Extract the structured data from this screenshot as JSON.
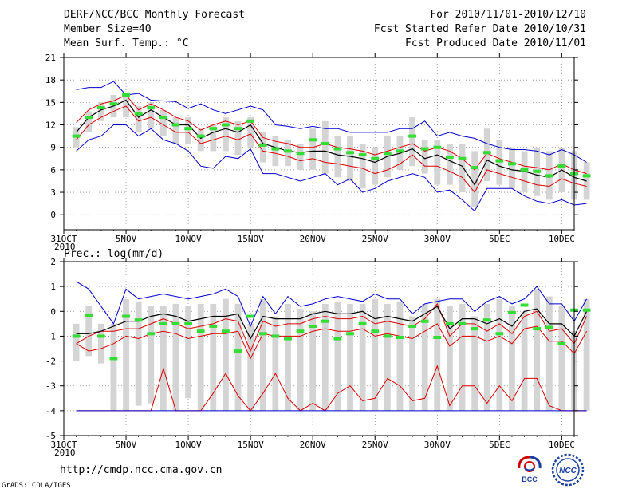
{
  "header": {
    "title": "DERF/NCC/BCC Monthly Forecast",
    "member_size": "Member Size=40",
    "variable": "Mean Surf. Temp.: °C",
    "period": "For 2010/11/01-2010/12/10",
    "started": "Fcst Started Refer Date 2010/10/31",
    "produced": "Fcst Produced Date 2010/11/01"
  },
  "footer": {
    "url": "http://cmdp.ncc.cma.gov.cn",
    "credit": "GrADS: COLA/IGES",
    "logo_bcc": "BCC",
    "logo_ncc": "NCC"
  },
  "colors": {
    "max": "#0000cc",
    "min": "#0000cc",
    "band": "#dd0000",
    "mean": "#000000",
    "box": "#d4d4d4",
    "median": "#33dd33"
  },
  "chart_data": [
    {
      "type": "box-line",
      "title": "Mean Surf. Temp.: °C",
      "xlabel": "",
      "ylabel": "",
      "ylim": [
        -2,
        21
      ],
      "yticks": [
        0,
        3,
        6,
        9,
        12,
        15,
        18,
        21
      ],
      "xlim": [
        0,
        41
      ],
      "xticks": [
        {
          "x": 0,
          "label": "31OCT",
          "sub": "2010"
        },
        {
          "x": 5,
          "label": "5NOV"
        },
        {
          "x": 10,
          "label": "10NOV"
        },
        {
          "x": 15,
          "label": "15NOV"
        },
        {
          "x": 20,
          "label": "20NOV"
        },
        {
          "x": 25,
          "label": "25NOV"
        },
        {
          "x": 30,
          "label": "30NOV"
        },
        {
          "x": 35,
          "label": "5DEC"
        },
        {
          "x": 40,
          "label": "10DEC"
        }
      ],
      "grid": true,
      "x_start": 1,
      "series": [
        {
          "name": "max",
          "values": [
            16.7,
            17.0,
            17.0,
            17.8,
            16.0,
            16.2,
            15.3,
            15.2,
            15.1,
            14.2,
            14.8,
            14.0,
            13.5,
            14.0,
            14.5,
            14.0,
            12.0,
            11.8,
            11.5,
            11.8,
            11.5,
            11.5,
            11.0,
            11.0,
            11.0,
            11.0,
            11.5,
            11.5,
            12.5,
            10.5,
            11.0,
            10.5,
            10.2,
            9.5,
            9.0,
            8.7,
            8.7,
            8.5,
            8.0,
            8.7,
            8.0,
            7.0
          ]
        },
        {
          "name": "band_high",
          "values": [
            12.3,
            14.0,
            14.8,
            15.2,
            16.0,
            14.0,
            14.8,
            14.0,
            13.0,
            12.5,
            11.3,
            12.0,
            12.5,
            12.0,
            12.5,
            10.3,
            9.8,
            9.5,
            9.0,
            9.0,
            9.5,
            9.0,
            8.8,
            8.5,
            8.0,
            8.5,
            9.0,
            9.5,
            8.5,
            9.0,
            8.5,
            7.5,
            6.0,
            8.2,
            7.5,
            7.0,
            6.5,
            6.3,
            6.0,
            6.8,
            6.0,
            5.5
          ]
        },
        {
          "name": "mean",
          "values": [
            11.0,
            13.0,
            14.0,
            14.5,
            15.3,
            13.0,
            14.0,
            13.0,
            12.0,
            12.0,
            10.2,
            11.0,
            11.5,
            11.0,
            12.0,
            9.5,
            9.0,
            8.5,
            8.3,
            8.5,
            8.5,
            8.0,
            7.8,
            7.5,
            7.0,
            7.8,
            8.2,
            8.8,
            7.5,
            8.0,
            7.2,
            6.5,
            4.0,
            7.3,
            6.5,
            6.0,
            5.8,
            5.3,
            5.0,
            6.0,
            5.0,
            4.5
          ]
        },
        {
          "name": "band_low",
          "values": [
            10.0,
            12.0,
            13.0,
            13.8,
            14.5,
            12.5,
            13.0,
            12.0,
            11.0,
            11.0,
            9.5,
            10.0,
            10.5,
            10.0,
            10.8,
            8.5,
            8.2,
            7.8,
            7.2,
            7.5,
            7.0,
            6.8,
            6.5,
            6.2,
            5.5,
            6.0,
            6.8,
            8.0,
            6.5,
            6.5,
            5.8,
            5.0,
            3.0,
            6.0,
            5.5,
            5.0,
            4.5,
            4.0,
            3.8,
            4.8,
            4.2,
            3.8
          ]
        },
        {
          "name": "min",
          "values": [
            8.5,
            10.0,
            10.5,
            12.0,
            12.0,
            10.5,
            11.5,
            10.0,
            9.5,
            8.5,
            6.5,
            6.2,
            7.8,
            7.5,
            8.8,
            5.5,
            5.5,
            5.0,
            4.5,
            5.0,
            5.5,
            4.0,
            4.8,
            3.0,
            3.5,
            4.5,
            5.0,
            5.5,
            5.0,
            3.0,
            3.3,
            2.0,
            0.5,
            3.5,
            3.5,
            3.5,
            2.5,
            1.8,
            1.5,
            2.0,
            1.3,
            1.5
          ]
        },
        {
          "name": "box_high",
          "values": [
            11.7,
            13.8,
            15.0,
            16.0,
            16.2,
            14.5,
            15.0,
            14.0,
            13.0,
            13.0,
            11.5,
            12.0,
            13.0,
            12.5,
            13.0,
            11.0,
            10.5,
            10.0,
            9.5,
            11.5,
            12.5,
            10.5,
            10.5,
            9.5,
            9.0,
            10.5,
            10.5,
            13.0,
            10.0,
            10.0,
            9.5,
            9.5,
            8.5,
            11.5,
            10.0,
            9.0,
            8.5,
            9.0,
            8.5,
            9.0,
            8.5,
            7.0
          ]
        },
        {
          "name": "box_low",
          "values": [
            9.0,
            11.0,
            12.5,
            13.0,
            13.0,
            11.0,
            11.5,
            10.5,
            9.5,
            9.5,
            8.5,
            8.5,
            8.5,
            8.0,
            9.0,
            7.0,
            6.5,
            6.5,
            6.0,
            6.0,
            5.5,
            5.0,
            4.5,
            3.5,
            4.0,
            5.0,
            6.0,
            6.5,
            5.5,
            4.0,
            4.0,
            3.0,
            1.0,
            4.5,
            4.0,
            3.5,
            3.0,
            2.5,
            2.0,
            3.0,
            2.0,
            2.0
          ]
        },
        {
          "name": "median",
          "values": [
            10.5,
            13.0,
            14.3,
            14.8,
            16.0,
            13.5,
            14.3,
            13.0,
            12.0,
            11.5,
            10.5,
            11.5,
            12.0,
            11.5,
            12.5,
            9.3,
            8.8,
            8.5,
            8.2,
            10.0,
            9.5,
            8.8,
            8.3,
            8.0,
            7.5,
            8.2,
            8.5,
            10.5,
            8.8,
            9.0,
            7.7,
            7.5,
            6.3,
            8.3,
            7.2,
            6.8,
            6.0,
            5.8,
            5.2,
            6.5,
            5.5,
            5.2
          ]
        }
      ]
    },
    {
      "type": "box-line",
      "title": "Prec.: log(mm/d)",
      "xlabel": "",
      "ylabel": "",
      "ylim": [
        -5,
        2
      ],
      "yticks": [
        -5,
        -4,
        -3,
        -2,
        -1,
        0,
        1,
        2
      ],
      "xlim": [
        0,
        41
      ],
      "xticks": [
        {
          "x": 0,
          "label": "31OCT",
          "sub": "2010"
        },
        {
          "x": 5,
          "label": "5NOV"
        },
        {
          "x": 10,
          "label": "10NOV"
        },
        {
          "x": 15,
          "label": "15NOV"
        },
        {
          "x": 20,
          "label": "20NOV"
        },
        {
          "x": 25,
          "label": "25NOV"
        },
        {
          "x": 30,
          "label": "30NOV"
        },
        {
          "x": 35,
          "label": "5DEC"
        },
        {
          "x": 40,
          "label": "10DEC"
        }
      ],
      "grid": true,
      "x_start": 1,
      "series": [
        {
          "name": "max",
          "values": [
            1.2,
            0.9,
            0.2,
            -0.5,
            0.9,
            0.5,
            0.6,
            0.7,
            0.6,
            0.5,
            0.6,
            0.7,
            0.9,
            0.6,
            -0.6,
            0.6,
            -0.1,
            0.6,
            0.2,
            0.3,
            0.5,
            0.6,
            0.5,
            0.4,
            0.7,
            0.5,
            0.5,
            -0.1,
            0.3,
            0.4,
            0.5,
            0.5,
            0.0,
            0.4,
            0.6,
            0.3,
            0.5,
            1.0,
            0.3,
            0.3,
            -0.4,
            0.5
          ]
        },
        {
          "name": "band_high",
          "values": [
            -1.3,
            -1.0,
            -0.8,
            -0.8,
            -0.7,
            -0.7,
            -0.5,
            -0.3,
            -0.5,
            -0.7,
            -0.6,
            -0.5,
            -0.3,
            -0.4,
            -1.6,
            -0.4,
            -0.6,
            -0.5,
            -0.5,
            -0.3,
            -0.2,
            -0.3,
            -0.3,
            -0.2,
            -0.5,
            -0.4,
            -0.5,
            -0.6,
            -0.3,
            0.3,
            -1.0,
            -0.5,
            -0.5,
            -0.8,
            -0.5,
            -0.9,
            -0.2,
            0.0,
            -0.8,
            -0.7,
            -1.3,
            -0.2
          ]
        },
        {
          "name": "mean",
          "values": [
            -0.9,
            -0.9,
            -0.8,
            -0.6,
            -0.4,
            -0.4,
            -0.2,
            -0.1,
            -0.2,
            -0.4,
            -0.3,
            -0.2,
            -0.2,
            -0.1,
            -1.1,
            -0.2,
            -0.3,
            -0.3,
            -0.3,
            -0.1,
            0.0,
            -0.1,
            -0.1,
            0.0,
            -0.3,
            -0.2,
            -0.3,
            -0.4,
            -0.1,
            0.2,
            -0.7,
            -0.3,
            -0.3,
            -0.5,
            -0.3,
            -0.6,
            0.0,
            0.1,
            -0.5,
            -0.5,
            -1.0,
            0.0
          ]
        },
        {
          "name": "band_low",
          "values": [
            -1.3,
            -1.6,
            -1.5,
            -1.3,
            -1.0,
            -1.1,
            -0.9,
            -0.8,
            -0.9,
            -1.1,
            -1.0,
            -0.9,
            -0.9,
            -0.8,
            -1.9,
            -0.9,
            -1.0,
            -1.0,
            -1.0,
            -0.8,
            -0.7,
            -0.8,
            -0.8,
            -0.7,
            -1.0,
            -0.9,
            -1.0,
            -1.1,
            -0.8,
            -0.5,
            -1.4,
            -1.0,
            -1.0,
            -1.2,
            -1.0,
            -1.3,
            -0.7,
            -0.6,
            -1.2,
            -1.2,
            -1.7,
            -0.8
          ]
        },
        {
          "name": "min",
          "values": [
            -4.0,
            -4.0,
            -4.0,
            -4.0,
            -4.0,
            -4.0,
            -4.0,
            -4.0,
            -4.0,
            -4.0,
            -4.0,
            -4.0,
            -4.0,
            -4.0,
            -4.0,
            -4.0,
            -4.0,
            -4.0,
            -4.0,
            -4.0,
            -4.0,
            -4.0,
            -4.0,
            -4.0,
            -4.0,
            -4.0,
            -4.0,
            -4.0,
            -4.0,
            -4.0,
            -4.0,
            -4.0,
            -4.0,
            -4.0,
            -4.0,
            -4.0,
            -4.0,
            -4.0,
            -4.0,
            -4.0,
            -4.0,
            -4.0
          ]
        },
        {
          "name": "aux",
          "values": [
            -4.0,
            -4.0,
            -4.0,
            -4.0,
            -4.0,
            -4.0,
            -4.0,
            -2.3,
            -4.0,
            -4.0,
            -4.0,
            -3.3,
            -2.5,
            -3.4,
            -4.0,
            -3.3,
            -2.5,
            -3.5,
            -4.0,
            -3.7,
            -4.0,
            -3.3,
            -3.0,
            -3.6,
            -3.5,
            -2.7,
            -3.0,
            -3.6,
            -3.5,
            -2.2,
            -3.8,
            -3.0,
            -3.0,
            -3.7,
            -3.0,
            -3.6,
            -2.7,
            -2.7,
            -3.8,
            -4.0,
            -4.0,
            -4.0
          ]
        },
        {
          "name": "box_high",
          "values": [
            -0.5,
            0.2,
            -0.5,
            -0.5,
            0.5,
            0.4,
            0.2,
            0.2,
            0.3,
            0.2,
            0.3,
            0.3,
            0.5,
            0.3,
            -0.5,
            0.5,
            -0.2,
            0.3,
            0.1,
            0.0,
            0.3,
            0.4,
            0.3,
            0.3,
            0.5,
            0.3,
            0.4,
            -0.2,
            0.3,
            0.5,
            0.2,
            0.3,
            -0.2,
            0.3,
            0.5,
            0.2,
            0.0,
            0.9,
            0.6,
            0.2,
            -0.8,
            0.5
          ]
        },
        {
          "name": "box_low",
          "values": [
            -2.0,
            -1.8,
            -2.1,
            -4.0,
            -4.0,
            -3.8,
            -3.7,
            -4.0,
            -4.0,
            -3.5,
            -4.0,
            -4.0,
            -4.0,
            -4.0,
            -4.0,
            -4.0,
            -4.0,
            -4.0,
            -4.0,
            -4.0,
            -4.0,
            -4.0,
            -4.0,
            -4.0,
            -4.0,
            -4.0,
            -4.0,
            -4.0,
            -4.0,
            -4.0,
            -4.0,
            -4.0,
            -4.0,
            -4.0,
            -4.0,
            -4.0,
            -4.0,
            -4.0,
            -4.0,
            -4.0,
            -4.0,
            -4.0
          ]
        },
        {
          "name": "median",
          "values": [
            -1.0,
            -0.15,
            -1.0,
            -1.9,
            -0.2,
            -0.35,
            -0.9,
            -0.5,
            -0.5,
            -0.5,
            -0.8,
            -0.6,
            -0.8,
            -1.6,
            -0.2,
            -0.9,
            -1.0,
            -1.1,
            -0.8,
            -0.6,
            -0.4,
            -1.1,
            -0.9,
            -0.5,
            -0.8,
            -1.0,
            -1.05,
            -0.6,
            -0.4,
            -1.05,
            -0.5,
            -0.5,
            -0.7,
            -0.35,
            -0.9,
            -0.05,
            0.25,
            -0.7,
            -0.65,
            -1.3,
            0.05,
            0.05
          ]
        }
      ]
    }
  ]
}
